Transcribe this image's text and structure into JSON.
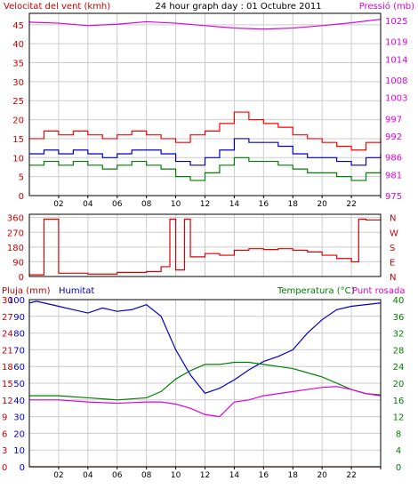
{
  "colors": {
    "wind": "#ff0000",
    "gust_low": "#008000",
    "avg": "#0000cc",
    "pressure": "#dd00dd",
    "direction": "#dd0000",
    "humidity": "#0000cc",
    "rain": "#cc0000",
    "temperature": "#008000",
    "dewpoint": "#dd00dd",
    "frame": "#000000",
    "grid": "#cccccc"
  },
  "chart_data": [
    {
      "type": "line",
      "title": "24 hour graph day : 01 Octubre 2011",
      "left_label": "Velocitat del vent (kmh)",
      "right_label": "Pressió (mb)",
      "x_ticks": [
        "02",
        "04",
        "06",
        "08",
        "10",
        "12",
        "14",
        "16",
        "18",
        "20",
        "22",
        ""
      ],
      "y_left_ticks": [
        "0",
        "5",
        "10",
        "15",
        "20",
        "25",
        "30",
        "35",
        "40",
        "45"
      ],
      "y_left_range": [
        0,
        48
      ],
      "y_right_ticks": [
        "975",
        "981",
        "986",
        "992",
        "997",
        "1003",
        "1008",
        "1014",
        "1019",
        "1025"
      ],
      "y_right_range": [
        975,
        1027
      ],
      "series": [
        {
          "key": "wind",
          "x": [
            0,
            1,
            2,
            3,
            4,
            5,
            6,
            7,
            8,
            9,
            10,
            11,
            12,
            13,
            14,
            15,
            16,
            17,
            18,
            19,
            20,
            21,
            22,
            23,
            24
          ],
          "values": [
            15,
            17,
            16,
            17,
            16,
            15,
            16,
            17,
            16,
            15,
            14,
            16,
            17,
            19,
            22,
            20,
            19,
            18,
            16,
            15,
            14,
            13,
            12,
            14,
            15
          ]
        },
        {
          "key": "gust_low",
          "x": [
            0,
            1,
            2,
            3,
            4,
            5,
            6,
            7,
            8,
            9,
            10,
            11,
            12,
            13,
            14,
            15,
            16,
            17,
            18,
            19,
            20,
            21,
            22,
            23,
            24
          ],
          "values": [
            8,
            9,
            8,
            9,
            8,
            7,
            8,
            9,
            8,
            7,
            5,
            4,
            6,
            8,
            10,
            9,
            9,
            8,
            7,
            6,
            6,
            5,
            4,
            6,
            7
          ]
        },
        {
          "key": "avg",
          "x": [
            0,
            1,
            2,
            3,
            4,
            5,
            6,
            7,
            8,
            9,
            10,
            11,
            12,
            13,
            14,
            15,
            16,
            17,
            18,
            19,
            20,
            21,
            22,
            23,
            24
          ],
          "values": [
            11,
            12,
            11,
            12,
            11,
            10,
            11,
            12,
            12,
            11,
            9,
            8,
            10,
            12,
            15,
            14,
            14,
            13,
            11,
            10,
            10,
            9,
            8,
            10,
            11
          ]
        },
        {
          "key": "pressure",
          "x": [
            0,
            2,
            4,
            6,
            8,
            10,
            12,
            14,
            16,
            18,
            20,
            22,
            24
          ],
          "values": [
            1024.5,
            1024.2,
            1023.5,
            1023.9,
            1024.6,
            1024.2,
            1023.5,
            1022.8,
            1022.5,
            1022.8,
            1023.5,
            1024.3,
            1025.3
          ]
        }
      ]
    },
    {
      "type": "line",
      "right_label": "N W S E N",
      "dir_labels": [
        "N",
        "W",
        "S",
        "E",
        "N"
      ],
      "y_left_ticks": [
        "0",
        "90",
        "180",
        "270",
        "360"
      ],
      "y_left_range": [
        0,
        380
      ],
      "series": [
        {
          "key": "direction",
          "x": [
            0,
            1,
            2,
            4,
            6,
            8,
            9,
            9.6,
            10,
            10.6,
            11,
            12,
            13,
            14,
            15,
            16,
            17,
            18,
            19,
            20,
            21,
            22,
            22.5,
            23,
            24
          ],
          "values": [
            10,
            350,
            20,
            15,
            25,
            30,
            60,
            350,
            40,
            350,
            120,
            140,
            130,
            160,
            170,
            165,
            170,
            160,
            150,
            130,
            110,
            90,
            350,
            345,
            350
          ]
        }
      ]
    },
    {
      "type": "line",
      "left_label": "Pluja (mm)",
      "mid_label": "Humitat",
      "right_label_a": "Temperatura (°C)",
      "right_label_b": "Punt rosada",
      "y_left_ticks": [
        "0",
        "3",
        "6",
        "9",
        "12",
        "15",
        "18",
        "21",
        "24",
        "27",
        "30"
      ],
      "y_humidity_ticks": [
        "0",
        "10",
        "20",
        "30",
        "40",
        "50",
        "60",
        "70",
        "80",
        "90",
        "100"
      ],
      "y_right_ticks": [
        "0",
        "4",
        "8",
        "12",
        "16",
        "20",
        "24",
        "28",
        "32",
        "36",
        "40"
      ],
      "y_right_range": [
        0,
        40
      ],
      "series": [
        {
          "key": "humidity",
          "x": [
            0,
            0.5,
            1,
            2,
            3,
            4,
            5,
            6,
            7,
            8,
            9,
            10,
            11,
            12,
            13,
            14,
            15,
            16,
            17,
            18,
            19,
            20,
            21,
            22,
            23,
            24
          ],
          "values": [
            98,
            99,
            98,
            96,
            94,
            92,
            95,
            93,
            94,
            97,
            90,
            70,
            55,
            44,
            47,
            52,
            58,
            63,
            66,
            70,
            80,
            88,
            94,
            96,
            97,
            98
          ]
        },
        {
          "key": "temperature",
          "x": [
            0,
            2,
            4,
            6,
            8,
            9,
            10,
            11,
            12,
            13,
            14,
            15,
            16,
            17,
            18,
            19,
            20,
            21,
            22,
            23,
            24
          ],
          "values": [
            17,
            17,
            16.5,
            16,
            16.5,
            18,
            21,
            23,
            24.5,
            24.5,
            25,
            25,
            24.5,
            24,
            23.5,
            22.5,
            21.5,
            20,
            18.5,
            17.5,
            17.2
          ]
        },
        {
          "key": "dewpoint",
          "x": [
            0,
            2,
            4,
            6,
            8,
            9,
            10,
            11,
            12,
            13,
            14,
            15,
            16,
            17,
            18,
            19,
            20,
            21,
            22,
            23,
            24
          ],
          "values": [
            16,
            16,
            15.5,
            15.2,
            15.5,
            15.5,
            15,
            14,
            12.5,
            12,
            15.5,
            16,
            17,
            17.5,
            18,
            18.5,
            19,
            19.2,
            18.5,
            17.5,
            17
          ]
        },
        {
          "key": "rain",
          "x": [
            0,
            24
          ],
          "values": [
            0,
            0
          ]
        }
      ]
    }
  ]
}
